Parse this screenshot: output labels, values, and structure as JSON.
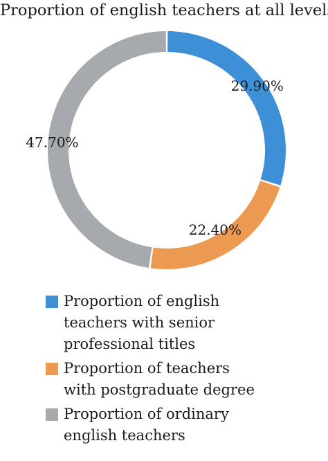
{
  "chart_data": {
    "type": "pie",
    "title": "Proportion of english teachers at all levels",
    "donut": true,
    "slices": [
      {
        "label": "Proportion of english teachers with senior professional titles",
        "legend_lines": [
          "Proportion of english",
          "teachers with senior",
          "professional titles"
        ],
        "value": 29.9,
        "display": "29.90%",
        "color": "#3d8fd6"
      },
      {
        "label": "Proportion of teachers with postgraduate degree",
        "legend_lines": [
          "Proportion of teachers",
          "with postgraduate degree"
        ],
        "value": 22.4,
        "display": "22.40%",
        "color": "#ec9a52"
      },
      {
        "label": "Proportion of ordinary english teachers",
        "legend_lines": [
          "Proportion of ordinary",
          "english teachers"
        ],
        "value": 47.7,
        "display": "47.70%",
        "color": "#a6a9ad"
      }
    ],
    "legend_position": "bottom"
  }
}
